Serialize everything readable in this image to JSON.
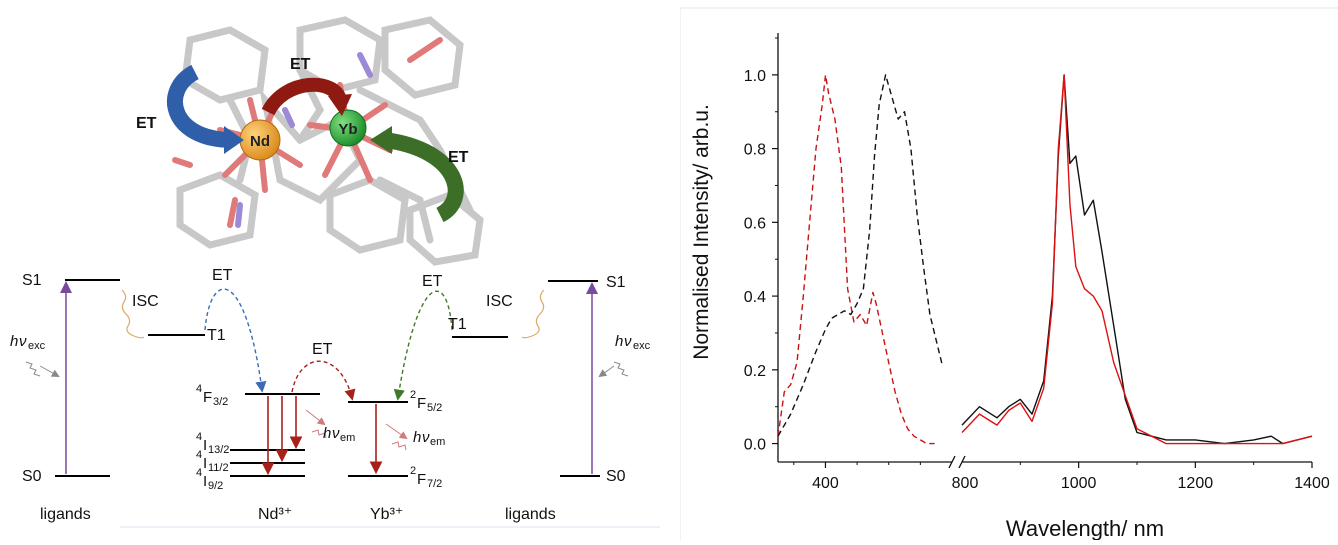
{
  "scheme": {
    "et_label": "ET",
    "nd_label": "Nd",
    "yb_label": "Yb",
    "isc": "ISC",
    "s1": "S1",
    "s0": "S0",
    "t1": "T1",
    "h": "h",
    "nu": "ν",
    "exc": "exc",
    "em": "em",
    "nd_f32": {
      "sup": "4",
      "main": "F",
      "sub": "3/2"
    },
    "nd_i132": {
      "sup": "4",
      "main": "I",
      "sub": "13/2"
    },
    "nd_i112": {
      "sup": "4",
      "main": "I",
      "sub": "11/2"
    },
    "nd_i92": {
      "sup": "4",
      "main": "I",
      "sub": "9/2"
    },
    "yb_f52": {
      "sup": "2",
      "main": "F",
      "sub": "5/2"
    },
    "yb_f72": {
      "sup": "2",
      "main": "F",
      "sub": "7/2"
    },
    "ligands_left": "ligands",
    "nd_ion": "Nd³⁺",
    "yb_ion": "Yb³⁺",
    "ligands_right": "ligands",
    "colors": {
      "blue": "#3a6cb5",
      "red": "#a8201a",
      "green": "#3f7a2a",
      "purple": "#7a4aa0",
      "orange": "#e4a12a"
    }
  },
  "chart_data": {
    "type": "line",
    "xlabel": "Wavelength/ nm",
    "ylabel": "Normalised Intensity/ arb.u.",
    "x_broken": true,
    "segments": [
      {
        "xlim": [
          250,
          800
        ],
        "ticks": [
          400,
          800
        ]
      },
      {
        "xlim": [
          800,
          1400
        ],
        "ticks": [
          800,
          1000,
          1200,
          1400
        ]
      }
    ],
    "ylim": [
      -0.05,
      1.1
    ],
    "yticks": [
      "0.0",
      "0.2",
      "0.4",
      "0.6",
      "0.8",
      "1.0"
    ],
    "series": [
      {
        "color": "#cc1111",
        "style": "dashed",
        "x": [
          250,
          270,
          290,
          310,
          330,
          350,
          370,
          390,
          400,
          410,
          430,
          450,
          470,
          490,
          510,
          530,
          550,
          560,
          580,
          600,
          620,
          640,
          660,
          680,
          700,
          720,
          745
        ],
        "y": [
          0.02,
          0.14,
          0.16,
          0.22,
          0.4,
          0.6,
          0.8,
          0.92,
          1.0,
          0.95,
          0.88,
          0.75,
          0.42,
          0.33,
          0.35,
          0.32,
          0.41,
          0.38,
          0.3,
          0.22,
          0.14,
          0.08,
          0.04,
          0.02,
          0.01,
          0.0,
          0.0
        ]
      },
      {
        "color": "#111111",
        "style": "dashed",
        "x": [
          250,
          290,
          330,
          370,
          400,
          420,
          440,
          460,
          480,
          500,
          520,
          540,
          555,
          570,
          590,
          610,
          630,
          650,
          670,
          690,
          710,
          730,
          750,
          770
        ],
        "y": [
          0.02,
          0.08,
          0.16,
          0.25,
          0.31,
          0.34,
          0.35,
          0.36,
          0.35,
          0.38,
          0.42,
          0.58,
          0.78,
          0.92,
          1.0,
          0.94,
          0.88,
          0.9,
          0.8,
          0.62,
          0.48,
          0.35,
          0.28,
          0.21
        ]
      },
      {
        "color": "#111111",
        "style": "solid",
        "x": [
          800,
          830,
          860,
          880,
          900,
          920,
          940,
          955,
          965,
          975,
          985,
          995,
          1010,
          1025,
          1040,
          1060,
          1080,
          1100,
          1150,
          1200,
          1250,
          1300,
          1330,
          1350,
          1400
        ],
        "y": [
          0.05,
          0.1,
          0.07,
          0.1,
          0.12,
          0.08,
          0.17,
          0.4,
          0.78,
          1.0,
          0.76,
          0.78,
          0.62,
          0.66,
          0.52,
          0.32,
          0.12,
          0.03,
          0.01,
          0.01,
          0.0,
          0.01,
          0.02,
          0.0,
          0.02
        ]
      },
      {
        "color": "#dd1111",
        "style": "solid",
        "x": [
          800,
          830,
          860,
          880,
          900,
          920,
          940,
          955,
          965,
          975,
          985,
          995,
          1010,
          1025,
          1040,
          1060,
          1080,
          1100,
          1150,
          1200,
          1250,
          1300,
          1350,
          1400
        ],
        "y": [
          0.03,
          0.08,
          0.05,
          0.09,
          0.11,
          0.06,
          0.15,
          0.38,
          0.8,
          1.0,
          0.65,
          0.48,
          0.42,
          0.4,
          0.36,
          0.22,
          0.13,
          0.04,
          0.0,
          0.0,
          0.0,
          0.0,
          0.0,
          0.02
        ]
      }
    ]
  }
}
